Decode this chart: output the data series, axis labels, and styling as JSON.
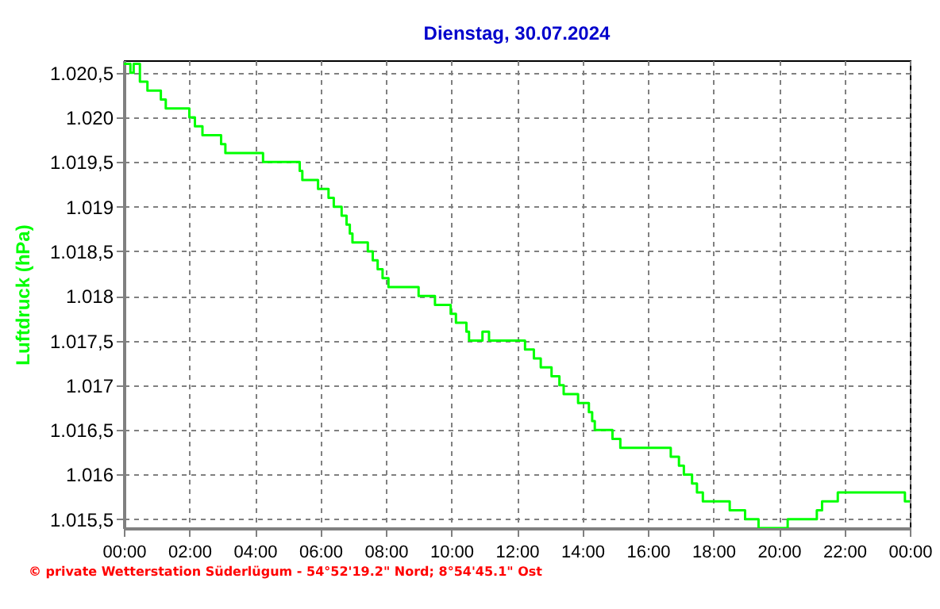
{
  "chart_data": {
    "type": "step",
    "title": "Dienstag, 30.07.2024",
    "ylabel": "Luftdruck (hPa)",
    "x": [
      0,
      0.2,
      0.3,
      0.49,
      0.72,
      1.13,
      1.28,
      2.0,
      2.17,
      2.4,
      2.97,
      3.1,
      4.25,
      5.37,
      5.45,
      5.93,
      6.25,
      6.41,
      6.65,
      6.8,
      6.9,
      6.98,
      7.45,
      7.6,
      7.75,
      7.9,
      8.08,
      9.0,
      9.5,
      9.98,
      10.14,
      10.46,
      10.54,
      10.95,
      11.15,
      12.25,
      12.52,
      12.73,
      13.06,
      13.3,
      13.43,
      13.87,
      14.2,
      14.3,
      14.38,
      14.92,
      15.16,
      16.7,
      16.95,
      17.1,
      17.35,
      17.5,
      17.68,
      18.5,
      18.97,
      19.38,
      20.27,
      21.16,
      21.32,
      21.8,
      23.85,
      24
    ],
    "series": [
      {
        "color": "#00ff00",
        "values": [
          1020.6,
          1020.5,
          1020.6,
          1020.4,
          1020.3,
          1020.2,
          1020.1,
          1020.0,
          1019.9,
          1019.8,
          1019.7,
          1019.6,
          1019.5,
          1019.4,
          1019.3,
          1019.2,
          1019.1,
          1019.0,
          1018.9,
          1018.8,
          1018.7,
          1018.6,
          1018.5,
          1018.4,
          1018.3,
          1018.2,
          1018.1,
          1018.0,
          1017.9,
          1017.8,
          1017.7,
          1017.6,
          1017.5,
          1017.6,
          1017.5,
          1017.4,
          1017.3,
          1017.2,
          1017.1,
          1017.0,
          1016.9,
          1016.8,
          1016.7,
          1016.6,
          1016.5,
          1016.4,
          1016.3,
          1016.2,
          1016.1,
          1016.0,
          1015.9,
          1015.8,
          1015.7,
          1015.6,
          1015.5,
          1015.4,
          1015.5,
          1015.6,
          1015.7,
          1015.8,
          1015.7,
          1015.7
        ]
      }
    ],
    "xlim": [
      0,
      24
    ],
    "xticks": [
      {
        "value": 0,
        "label": "00:00"
      },
      {
        "value": 2,
        "label": "02:00"
      },
      {
        "value": 4,
        "label": "04:00"
      },
      {
        "value": 6,
        "label": "06:00"
      },
      {
        "value": 8,
        "label": "08:00"
      },
      {
        "value": 10,
        "label": "10:00"
      },
      {
        "value": 12,
        "label": "12:00"
      },
      {
        "value": 14,
        "label": "14:00"
      },
      {
        "value": 16,
        "label": "16:00"
      },
      {
        "value": 18,
        "label": "18:00"
      },
      {
        "value": 20,
        "label": "20:00"
      },
      {
        "value": 22,
        "label": "22:00"
      },
      {
        "value": 24,
        "label": "00:00"
      }
    ],
    "ylim": [
      1015.4,
      1020.64
    ],
    "yticks": [
      {
        "value": 1015.5,
        "label": "1.015,5"
      },
      {
        "value": 1016,
        "label": "1.016"
      },
      {
        "value": 1016.5,
        "label": "1.016,5"
      },
      {
        "value": 1017,
        "label": "1.017"
      },
      {
        "value": 1017.5,
        "label": "1.017,5"
      },
      {
        "value": 1018,
        "label": "1.018"
      },
      {
        "value": 1018.5,
        "label": "1.018,5"
      },
      {
        "value": 1019,
        "label": "1.019"
      },
      {
        "value": 1019.5,
        "label": "1.019,5"
      },
      {
        "value": 1020,
        "label": "1.020"
      },
      {
        "value": 1020.5,
        "label": "1.020,5"
      }
    ],
    "grid": true,
    "line_style": "solid",
    "marker": "none",
    "annotations": [
      "© private Wetterstation Süderlügum - 54°52'19.2\" Nord; 8°54'45.1\" Ost"
    ]
  }
}
